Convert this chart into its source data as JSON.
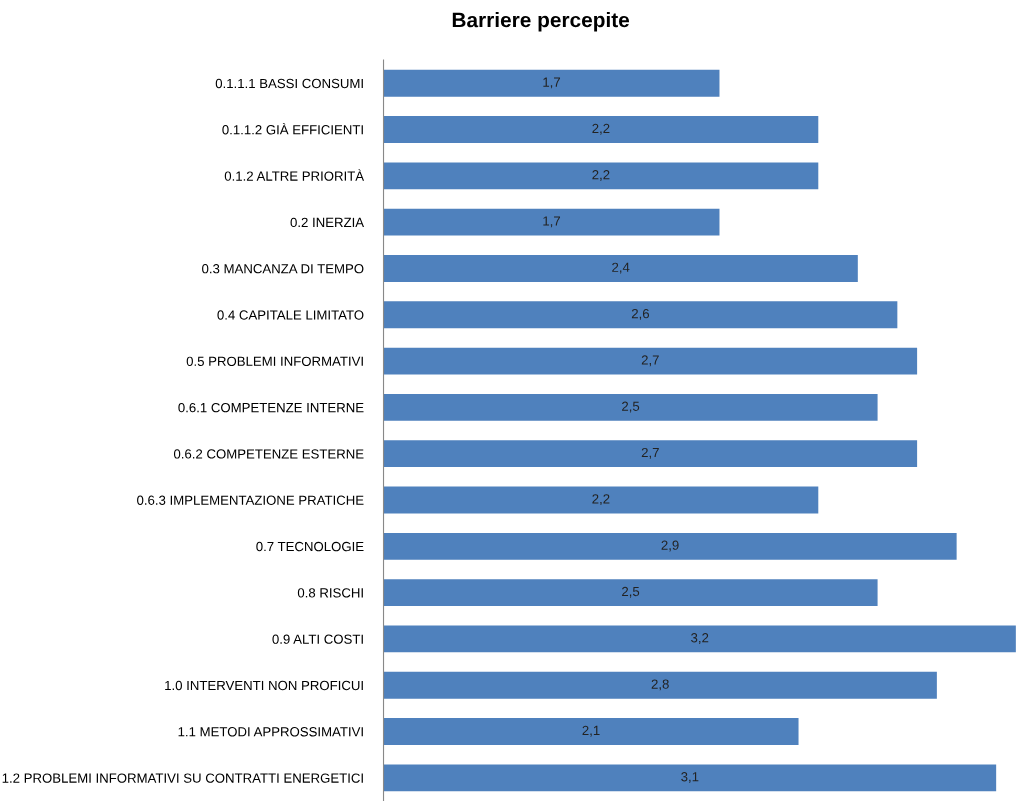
{
  "chart_data": {
    "type": "bar",
    "orientation": "horizontal",
    "title": "Barriere percepite",
    "categories": [
      "0.1.1.1 BASSI CONSUMI",
      "0.1.1.2 GIÀ EFFICIENTI",
      "0.1.2 ALTRE PRIORITÀ",
      "0.2 INERZIA",
      "0.3 MANCANZA DI TEMPO",
      "0.4 CAPITALE LIMITATO",
      "0.5 PROBLEMI INFORMATIVI",
      "0.6.1 COMPETENZE INTERNE",
      "0.6.2 COMPETENZE ESTERNE",
      "0.6.3 IMPLEMENTAZIONE PRATICHE",
      "0.7 TECNOLOGIE",
      "0.8 RISCHI",
      "0.9 ALTI COSTI",
      "1.0 INTERVENTI NON PROFICUI",
      "1.1 METODI APPROSSIMATIVI",
      "1.2 PROBLEMI INFORMATIVI SU CONTRATTI ENERGETICI"
    ],
    "values": [
      1.7,
      2.2,
      2.2,
      1.7,
      2.4,
      2.6,
      2.7,
      2.5,
      2.7,
      2.2,
      2.9,
      2.5,
      3.2,
      2.8,
      2.1,
      3.1
    ],
    "value_labels": [
      "1,7",
      "2,2",
      "2,2",
      "1,7",
      "2,4",
      "2,6",
      "2,7",
      "2,5",
      "2,7",
      "2,2",
      "2,9",
      "2,5",
      "3,2",
      "2,8",
      "2,1",
      "3,1"
    ],
    "color": "#4f81bd",
    "grid": false,
    "legend": false
  }
}
